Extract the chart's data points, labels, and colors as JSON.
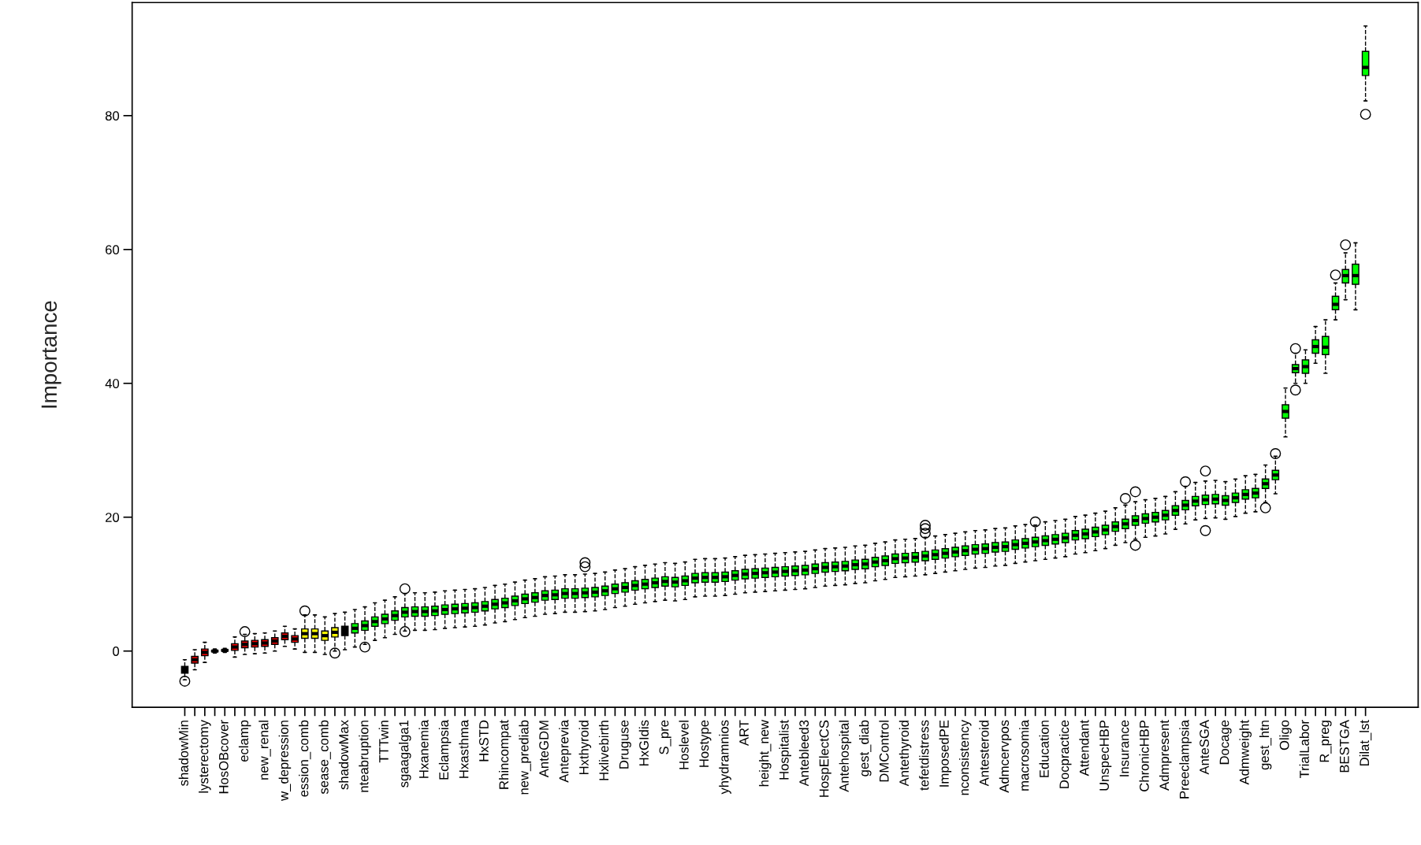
{
  "chart_data": {
    "type": "box",
    "ylabel": "Importance",
    "ylim": [
      -8.4,
      96.9
    ],
    "yticks": [
      0,
      20,
      40,
      60,
      80
    ],
    "categories": [
      "shadowMin",
      null,
      "lysterectomy",
      null,
      "HosOBcover",
      null,
      "eclamp",
      null,
      "new_renal",
      null,
      "w_depression",
      null,
      "ession_comb",
      null,
      "sease_comb",
      null,
      "shadowMax",
      null,
      "nteabruption",
      null,
      "TTTwin",
      null,
      "sgaagalga1",
      null,
      "Hxanemia",
      null,
      "Eclampsia",
      null,
      "Hxasthma",
      null,
      "HxSTD",
      null,
      "Rhincompat",
      null,
      "new_prediab",
      null,
      "AnteGDM",
      null,
      "Anteprevia",
      null,
      "Hxthyroid",
      null,
      "Hxlivebirth",
      null,
      "Druguse",
      null,
      "HxGIdis",
      null,
      "S_pre",
      null,
      "Hoslevel",
      null,
      "Hostype",
      null,
      "yhydramnios",
      null,
      "ART",
      null,
      "height_new",
      null,
      "Hospitalist",
      null,
      "Antebleed3",
      null,
      "HospElectCS",
      null,
      "Antehospital",
      null,
      "gest_diab",
      null,
      "DMControl",
      null,
      "Antethyroid",
      null,
      "tefetdistress",
      null,
      "ImposedPE",
      null,
      "nconsistency",
      null,
      "Antesteroid",
      null,
      "Admcervpos",
      null,
      "macrosomia",
      null,
      "Education",
      null,
      "Docpractice",
      null,
      "Attendant",
      null,
      "UnspecHBP",
      null,
      "Insurance",
      null,
      "ChronicHBP",
      null,
      "Admpresent",
      null,
      "Preeclampsia",
      null,
      "AnteSGA",
      null,
      "Docage",
      null,
      "Admweight",
      null,
      "gest_htn",
      null,
      "Oligo",
      null,
      "TrialLabor",
      null,
      "R_preg",
      null,
      "BESTGA",
      null,
      "Dilat_lst"
    ],
    "colors": [
      "#000000",
      "#ff0000",
      "#ff0000",
      "#ff0000",
      "#ff0000",
      "#ff0000",
      "#ff0000",
      "#ff0000",
      "#ff0000",
      "#ff0000",
      "#ff0000",
      "#ff0000",
      "#ffff00",
      "#ffff00",
      "#ffff00",
      "#ffff00",
      "#000000",
      "#00ff00",
      "#00ff00",
      "#00ff00",
      "#00ff00",
      "#00ff00",
      "#00ff00",
      "#00ff00",
      "#00ff00",
      "#00ff00",
      "#00ff00",
      "#00ff00",
      "#00ff00",
      "#00ff00",
      "#00ff00",
      "#00ff00",
      "#00ff00",
      "#00ff00",
      "#00ff00",
      "#00ff00",
      "#00ff00",
      "#00ff00",
      "#00ff00",
      "#00ff00",
      "#00ff00",
      "#00ff00",
      "#00ff00",
      "#00ff00",
      "#00ff00",
      "#00ff00",
      "#00ff00",
      "#00ff00",
      "#00ff00",
      "#00ff00",
      "#00ff00",
      "#00ff00",
      "#00ff00",
      "#00ff00",
      "#00ff00",
      "#00ff00",
      "#00ff00",
      "#00ff00",
      "#00ff00",
      "#00ff00",
      "#00ff00",
      "#00ff00",
      "#00ff00",
      "#00ff00",
      "#00ff00",
      "#00ff00",
      "#00ff00",
      "#00ff00",
      "#00ff00",
      "#00ff00",
      "#00ff00",
      "#00ff00",
      "#00ff00",
      "#00ff00",
      "#00ff00",
      "#00ff00",
      "#00ff00",
      "#00ff00",
      "#00ff00",
      "#00ff00",
      "#00ff00",
      "#00ff00",
      "#00ff00",
      "#00ff00",
      "#00ff00",
      "#00ff00",
      "#00ff00",
      "#00ff00",
      "#00ff00",
      "#00ff00",
      "#00ff00",
      "#00ff00",
      "#00ff00",
      "#00ff00",
      "#00ff00",
      "#00ff00",
      "#00ff00",
      "#00ff00",
      "#00ff00",
      "#00ff00",
      "#00ff00",
      "#00ff00",
      "#00ff00",
      "#00ff00",
      "#00ff00",
      "#00ff00",
      "#00ff00",
      "#00ff00",
      "#00ff00",
      "#00ff00",
      "#00ff00",
      "#00ff00",
      "#00ff00",
      "#00ff00",
      "#00ff00",
      "#00ff00",
      "#00ff00",
      "#00ff00",
      "#00ff00"
    ],
    "boxes": [
      {
        "low": -4.3,
        "q1": -3.3,
        "median": -2.8,
        "q3": -2.3,
        "high": -1.3,
        "outliers": [
          -4.5
        ]
      },
      {
        "low": -2.8,
        "q1": -1.8,
        "median": -1.3,
        "q3": -0.8,
        "high": 0.2
      },
      {
        "low": -1.7,
        "q1": -0.7,
        "median": -0.2,
        "q3": 0.3,
        "high": 1.3
      },
      {
        "low": -0.3,
        "q1": -0.1,
        "median": 0.0,
        "q3": 0.1,
        "high": 0.3
      },
      {
        "low": -0.2,
        "q1": 0.0,
        "median": 0.1,
        "q3": 0.2,
        "high": 0.4
      },
      {
        "low": -0.9,
        "q1": 0.1,
        "median": 0.6,
        "q3": 1.1,
        "high": 2.1
      },
      {
        "low": -0.5,
        "q1": 0.5,
        "median": 1.0,
        "q3": 1.5,
        "high": 2.5,
        "outliers": [
          2.9
        ]
      },
      {
        "low": -0.4,
        "q1": 0.6,
        "median": 1.1,
        "q3": 1.6,
        "high": 2.6
      },
      {
        "low": -0.3,
        "q1": 0.7,
        "median": 1.2,
        "q3": 1.7,
        "high": 2.7
      },
      {
        "low": 0.0,
        "q1": 1.0,
        "median": 1.5,
        "q3": 2.0,
        "high": 3.0
      },
      {
        "low": 0.7,
        "q1": 1.7,
        "median": 2.2,
        "q3": 2.7,
        "high": 3.7
      },
      {
        "low": 0.3,
        "q1": 1.3,
        "median": 1.8,
        "q3": 2.3,
        "high": 3.3
      },
      {
        "low": -0.2,
        "q1": 1.9,
        "median": 2.6,
        "q3": 3.3,
        "high": 5.4,
        "outliers": [
          6.0
        ]
      },
      {
        "low": -0.2,
        "q1": 1.9,
        "median": 2.6,
        "q3": 3.3,
        "high": 5.4
      },
      {
        "low": -0.5,
        "q1": 1.6,
        "median": 2.3,
        "q3": 3.0,
        "high": 5.1
      },
      {
        "low": 0.0,
        "q1": 2.1,
        "median": 2.8,
        "q3": 3.5,
        "high": 5.6,
        "outliers": [
          -0.3
        ]
      },
      {
        "low": 0.2,
        "q1": 2.3,
        "median": 3.0,
        "q3": 3.7,
        "high": 5.8
      },
      {
        "low": 0.6,
        "q1": 2.7,
        "median": 3.4,
        "q3": 4.1,
        "high": 6.2
      },
      {
        "low": 1.0,
        "q1": 3.1,
        "median": 3.8,
        "q3": 4.5,
        "high": 6.6,
        "outliers": [
          0.6
        ]
      },
      {
        "low": 1.6,
        "q1": 3.7,
        "median": 4.4,
        "q3": 5.1,
        "high": 7.2
      },
      {
        "low": 2.0,
        "q1": 4.1,
        "median": 4.8,
        "q3": 5.5,
        "high": 7.6
      },
      {
        "low": 2.5,
        "q1": 4.6,
        "median": 5.3,
        "q3": 6.0,
        "high": 8.1
      },
      {
        "low": 3.0,
        "q1": 5.1,
        "median": 5.8,
        "q3": 6.5,
        "high": 8.6,
        "outliers": [
          9.3,
          2.9
        ]
      },
      {
        "low": 3.1,
        "q1": 5.2,
        "median": 5.9,
        "q3": 6.6,
        "high": 8.7
      },
      {
        "low": 3.1,
        "q1": 5.2,
        "median": 5.9,
        "q3": 6.6,
        "high": 8.7
      },
      {
        "low": 3.2,
        "q1": 5.3,
        "median": 6.0,
        "q3": 6.7,
        "high": 8.8
      },
      {
        "low": 3.4,
        "q1": 5.5,
        "median": 6.2,
        "q3": 6.9,
        "high": 9.0
      },
      {
        "low": 3.5,
        "q1": 5.6,
        "median": 6.3,
        "q3": 7.0,
        "high": 9.1
      },
      {
        "low": 3.6,
        "q1": 5.7,
        "median": 6.4,
        "q3": 7.1,
        "high": 9.2
      },
      {
        "low": 3.7,
        "q1": 5.8,
        "median": 6.5,
        "q3": 7.2,
        "high": 9.3
      },
      {
        "low": 3.9,
        "q1": 6.0,
        "median": 6.7,
        "q3": 7.4,
        "high": 9.5
      },
      {
        "low": 4.2,
        "q1": 6.3,
        "median": 7.0,
        "q3": 7.7,
        "high": 9.8
      },
      {
        "low": 4.4,
        "q1": 6.5,
        "median": 7.2,
        "q3": 7.9,
        "high": 10.0
      },
      {
        "low": 4.7,
        "q1": 6.8,
        "median": 7.5,
        "q3": 8.2,
        "high": 10.3
      },
      {
        "low": 5.0,
        "q1": 7.1,
        "median": 7.8,
        "q3": 8.5,
        "high": 10.6
      },
      {
        "low": 5.2,
        "q1": 7.3,
        "median": 8.0,
        "q3": 8.7,
        "high": 10.8
      },
      {
        "low": 5.5,
        "q1": 7.6,
        "median": 8.3,
        "q3": 9.0,
        "high": 11.1
      },
      {
        "low": 5.6,
        "q1": 7.7,
        "median": 8.4,
        "q3": 9.1,
        "high": 11.2
      },
      {
        "low": 5.8,
        "q1": 7.9,
        "median": 8.6,
        "q3": 9.3,
        "high": 11.4
      },
      {
        "low": 5.8,
        "q1": 7.9,
        "median": 8.6,
        "q3": 9.3,
        "high": 11.4
      },
      {
        "low": 5.9,
        "q1": 8.0,
        "median": 8.7,
        "q3": 9.4,
        "high": 11.5,
        "outliers": [
          13.2,
          12.6
        ]
      },
      {
        "low": 6.0,
        "q1": 8.1,
        "median": 8.8,
        "q3": 9.5,
        "high": 11.6
      },
      {
        "low": 6.2,
        "q1": 8.3,
        "median": 9.0,
        "q3": 9.7,
        "high": 11.8
      },
      {
        "low": 6.5,
        "q1": 8.6,
        "median": 9.3,
        "q3": 10.0,
        "high": 12.1
      },
      {
        "low": 6.7,
        "q1": 8.8,
        "median": 9.5,
        "q3": 10.2,
        "high": 12.3
      },
      {
        "low": 7.0,
        "q1": 9.1,
        "median": 9.8,
        "q3": 10.5,
        "high": 12.6
      },
      {
        "low": 7.2,
        "q1": 9.3,
        "median": 10.0,
        "q3": 10.7,
        "high": 12.8
      },
      {
        "low": 7.4,
        "q1": 9.5,
        "median": 10.2,
        "q3": 10.9,
        "high": 13.0
      },
      {
        "low": 7.6,
        "q1": 9.7,
        "median": 10.4,
        "q3": 11.1,
        "high": 13.2
      },
      {
        "low": 7.5,
        "q1": 9.6,
        "median": 10.3,
        "q3": 11.0,
        "high": 13.1
      },
      {
        "low": 7.7,
        "q1": 9.8,
        "median": 10.5,
        "q3": 11.2,
        "high": 13.3
      },
      {
        "low": 8.1,
        "q1": 10.2,
        "median": 10.9,
        "q3": 11.6,
        "high": 13.7
      },
      {
        "low": 8.2,
        "q1": 10.3,
        "median": 11.0,
        "q3": 11.7,
        "high": 13.8
      },
      {
        "low": 8.2,
        "q1": 10.3,
        "median": 11.0,
        "q3": 11.7,
        "high": 13.8
      },
      {
        "low": 8.3,
        "q1": 10.4,
        "median": 11.1,
        "q3": 11.8,
        "high": 13.9
      },
      {
        "low": 8.5,
        "q1": 10.6,
        "median": 11.3,
        "q3": 12.0,
        "high": 14.1
      },
      {
        "low": 8.7,
        "q1": 10.8,
        "median": 11.5,
        "q3": 12.2,
        "high": 14.3
      },
      {
        "low": 8.8,
        "q1": 10.9,
        "median": 11.6,
        "q3": 12.3,
        "high": 14.4
      },
      {
        "low": 8.9,
        "q1": 11.0,
        "median": 11.7,
        "q3": 12.4,
        "high": 14.5
      },
      {
        "low": 9.0,
        "q1": 11.1,
        "median": 11.8,
        "q3": 12.5,
        "high": 14.6
      },
      {
        "low": 9.1,
        "q1": 11.2,
        "median": 11.9,
        "q3": 12.6,
        "high": 14.7
      },
      {
        "low": 9.2,
        "q1": 11.3,
        "median": 12.0,
        "q3": 12.7,
        "high": 14.8
      },
      {
        "low": 9.3,
        "q1": 11.4,
        "median": 12.1,
        "q3": 12.8,
        "high": 14.9
      },
      {
        "low": 9.5,
        "q1": 11.6,
        "median": 12.3,
        "q3": 13.0,
        "high": 15.1
      },
      {
        "low": 9.7,
        "q1": 11.8,
        "median": 12.5,
        "q3": 13.2,
        "high": 15.3
      },
      {
        "low": 9.8,
        "q1": 11.9,
        "median": 12.6,
        "q3": 13.3,
        "high": 15.4
      },
      {
        "low": 9.9,
        "q1": 12.0,
        "median": 12.7,
        "q3": 13.4,
        "high": 15.5
      },
      {
        "low": 10.1,
        "q1": 12.2,
        "median": 12.9,
        "q3": 13.6,
        "high": 15.7
      },
      {
        "low": 10.2,
        "q1": 12.3,
        "median": 13.0,
        "q3": 13.7,
        "high": 15.8
      },
      {
        "low": 10.5,
        "q1": 12.6,
        "median": 13.3,
        "q3": 14.0,
        "high": 16.1
      },
      {
        "low": 10.7,
        "q1": 12.8,
        "median": 13.5,
        "q3": 14.2,
        "high": 16.3
      },
      {
        "low": 11.0,
        "q1": 13.1,
        "median": 13.8,
        "q3": 14.5,
        "high": 16.6
      },
      {
        "low": 11.1,
        "q1": 13.2,
        "median": 13.9,
        "q3": 14.6,
        "high": 16.7
      },
      {
        "low": 11.2,
        "q1": 13.3,
        "median": 14.0,
        "q3": 14.7,
        "high": 16.8
      },
      {
        "low": 11.4,
        "q1": 13.5,
        "median": 14.2,
        "q3": 14.9,
        "high": 17.0,
        "outliers": [
          18.8,
          18.3,
          17.6
        ]
      },
      {
        "low": 11.6,
        "q1": 13.7,
        "median": 14.4,
        "q3": 15.1,
        "high": 17.2
      },
      {
        "low": 11.8,
        "q1": 13.9,
        "median": 14.6,
        "q3": 15.3,
        "high": 17.4
      },
      {
        "low": 12.0,
        "q1": 14.1,
        "median": 14.8,
        "q3": 15.5,
        "high": 17.6
      },
      {
        "low": 12.2,
        "q1": 14.3,
        "median": 15.0,
        "q3": 15.7,
        "high": 17.8
      },
      {
        "low": 12.4,
        "q1": 14.5,
        "median": 15.2,
        "q3": 15.9,
        "high": 18.0
      },
      {
        "low": 12.5,
        "q1": 14.6,
        "median": 15.3,
        "q3": 16.0,
        "high": 18.1
      },
      {
        "low": 12.7,
        "q1": 14.8,
        "median": 15.5,
        "q3": 16.2,
        "high": 18.3
      },
      {
        "low": 12.8,
        "q1": 14.9,
        "median": 15.6,
        "q3": 16.3,
        "high": 18.4
      },
      {
        "low": 13.1,
        "q1": 15.2,
        "median": 15.9,
        "q3": 16.6,
        "high": 18.7
      },
      {
        "low": 13.3,
        "q1": 15.4,
        "median": 16.1,
        "q3": 16.8,
        "high": 18.9
      },
      {
        "low": 13.5,
        "q1": 15.6,
        "median": 16.3,
        "q3": 17.0,
        "high": 18.8,
        "outliers": [
          19.3
        ]
      },
      {
        "low": 13.7,
        "q1": 15.8,
        "median": 16.5,
        "q3": 17.2,
        "high": 19.3
      },
      {
        "low": 13.9,
        "q1": 16.0,
        "median": 16.7,
        "q3": 17.4,
        "high": 19.5
      },
      {
        "low": 14.1,
        "q1": 16.2,
        "median": 16.9,
        "q3": 17.6,
        "high": 19.7
      },
      {
        "low": 14.5,
        "q1": 16.6,
        "median": 17.3,
        "q3": 18.0,
        "high": 20.1
      },
      {
        "low": 14.7,
        "q1": 16.8,
        "median": 17.5,
        "q3": 18.2,
        "high": 20.3
      },
      {
        "low": 15.0,
        "q1": 17.1,
        "median": 17.8,
        "q3": 18.5,
        "high": 20.6
      },
      {
        "low": 15.3,
        "q1": 17.4,
        "median": 18.1,
        "q3": 18.8,
        "high": 20.9
      },
      {
        "low": 15.8,
        "q1": 17.9,
        "median": 18.6,
        "q3": 19.3,
        "high": 21.4
      },
      {
        "low": 16.2,
        "q1": 18.3,
        "median": 19.0,
        "q3": 19.7,
        "high": 21.8,
        "outliers": [
          22.8
        ]
      },
      {
        "low": 16.7,
        "q1": 18.8,
        "median": 19.5,
        "q3": 20.2,
        "high": 22.3,
        "outliers": [
          23.8,
          15.8
        ]
      },
      {
        "low": 17.0,
        "q1": 19.1,
        "median": 19.8,
        "q3": 20.5,
        "high": 22.6
      },
      {
        "low": 17.2,
        "q1": 19.3,
        "median": 20.0,
        "q3": 20.7,
        "high": 22.8
      },
      {
        "low": 17.5,
        "q1": 19.6,
        "median": 20.3,
        "q3": 21.0,
        "high": 23.1
      },
      {
        "low": 18.2,
        "q1": 20.3,
        "median": 21.0,
        "q3": 21.7,
        "high": 23.8
      },
      {
        "low": 19.0,
        "q1": 21.1,
        "median": 21.8,
        "q3": 22.5,
        "high": 24.6,
        "outliers": [
          25.3
        ]
      },
      {
        "low": 19.6,
        "q1": 21.7,
        "median": 22.4,
        "q3": 23.1,
        "high": 25.2
      },
      {
        "low": 19.8,
        "q1": 21.9,
        "median": 22.6,
        "q3": 23.3,
        "high": 25.4,
        "outliers": [
          26.9,
          18.0
        ]
      },
      {
        "low": 19.9,
        "q1": 22.0,
        "median": 22.7,
        "q3": 23.4,
        "high": 25.5
      },
      {
        "low": 19.7,
        "q1": 21.8,
        "median": 22.5,
        "q3": 23.2,
        "high": 25.3
      },
      {
        "low": 20.1,
        "q1": 22.2,
        "median": 22.9,
        "q3": 23.6,
        "high": 25.7
      },
      {
        "low": 20.6,
        "q1": 22.7,
        "median": 23.4,
        "q3": 24.1,
        "high": 26.2
      },
      {
        "low": 20.8,
        "q1": 22.9,
        "median": 23.6,
        "q3": 24.3,
        "high": 26.4
      },
      {
        "low": 22.2,
        "q1": 24.3,
        "median": 25.0,
        "q3": 25.7,
        "high": 27.8,
        "outliers": [
          21.4
        ]
      },
      {
        "low": 23.5,
        "q1": 25.6,
        "median": 26.3,
        "q3": 27.0,
        "high": 29.1,
        "outliers": [
          29.5
        ]
      },
      {
        "low": 32.0,
        "q1": 34.8,
        "median": 35.8,
        "q3": 36.8,
        "high": 39.3
      },
      {
        "low": 40.0,
        "q1": 41.6,
        "median": 42.2,
        "q3": 42.8,
        "high": 44.5,
        "outliers": [
          45.2,
          39.0
        ]
      },
      {
        "low": 40.0,
        "q1": 41.5,
        "median": 42.5,
        "q3": 43.5,
        "high": 45.0
      },
      {
        "low": 43.0,
        "q1": 44.5,
        "median": 45.5,
        "q3": 46.5,
        "high": 48.5
      },
      {
        "low": 41.5,
        "q1": 44.3,
        "median": 45.4,
        "q3": 47.0,
        "high": 49.5
      },
      {
        "low": 49.5,
        "q1": 51.0,
        "median": 51.8,
        "q3": 53.0,
        "high": 55.0,
        "outliers": [
          56.2
        ]
      },
      {
        "low": 52.5,
        "q1": 55.0,
        "median": 56.1,
        "q3": 57.0,
        "high": 59.5,
        "outliers": [
          60.7
        ]
      },
      {
        "low": 51.0,
        "q1": 54.8,
        "median": 56.1,
        "q3": 57.8,
        "high": 61.0
      },
      {
        "low": 82.2,
        "q1": 86.0,
        "median": 87.2,
        "q3": 89.6,
        "high": 93.4,
        "outliers": [
          80.2
        ]
      }
    ]
  }
}
